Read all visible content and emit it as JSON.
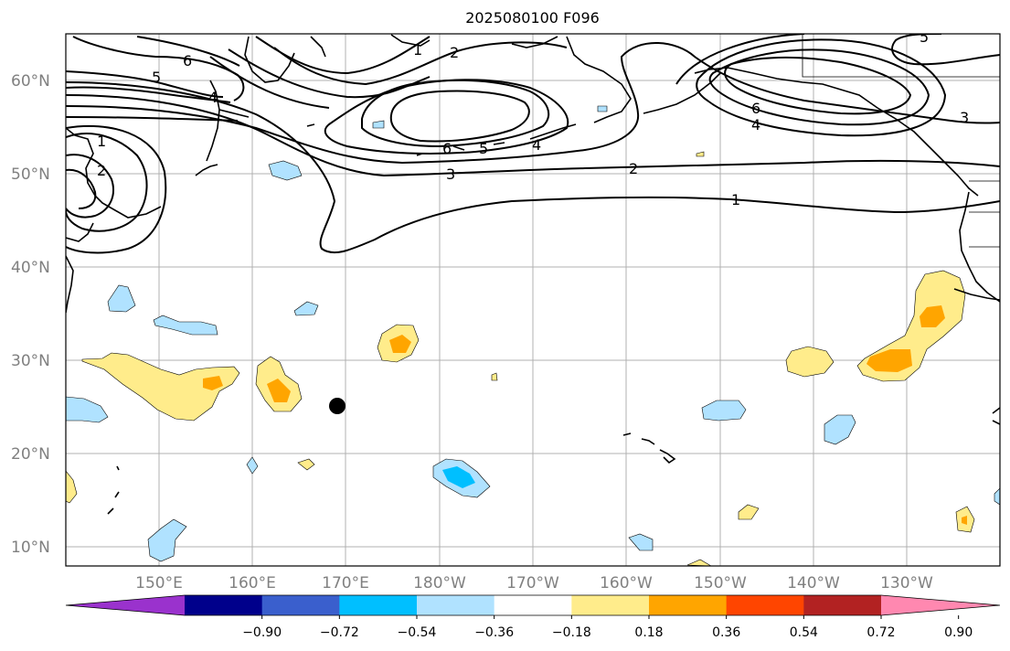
{
  "title": "2025080100 F096",
  "lat_labels": [
    "60°N",
    "50°N",
    "40°N",
    "30°N",
    "20°N",
    "10°N"
  ],
  "lon_labels": [
    "150°E",
    "160°E",
    "170°E",
    "180°W",
    "170°W",
    "160°W",
    "150°W",
    "140°W",
    "130°W"
  ],
  "colorbar": {
    "colors": [
      "#9a32cd",
      "#00008b",
      "#3a5fcd",
      "#00bfff",
      "#b0e2ff",
      "#ffffff",
      "#ffec8b",
      "#ffa500",
      "#ff4500",
      "#b22222",
      "#ff88b0"
    ],
    "tick_labels": [
      "−0.90",
      "−0.72",
      "−0.54",
      "−0.36",
      "−0.18",
      "0.18",
      "0.36",
      "0.54",
      "0.72",
      "0.90"
    ]
  },
  "contour_labels": {
    "nw_1a": "1",
    "nw_2a": "2",
    "nw_6": "6",
    "nw_5": "5",
    "nw_4": "4",
    "left_1": "1",
    "left_2": "2",
    "low_6": "6",
    "low_5": "5",
    "low_4": "4",
    "low_3": "3",
    "center_2": "2",
    "right_1": "1",
    "ne_6": "6",
    "ne_4": "4",
    "ne_5": "5",
    "ne_3": "3"
  },
  "markers": [
    {
      "lat": 25,
      "lon": 171,
      "name": "storm-point"
    }
  ]
}
